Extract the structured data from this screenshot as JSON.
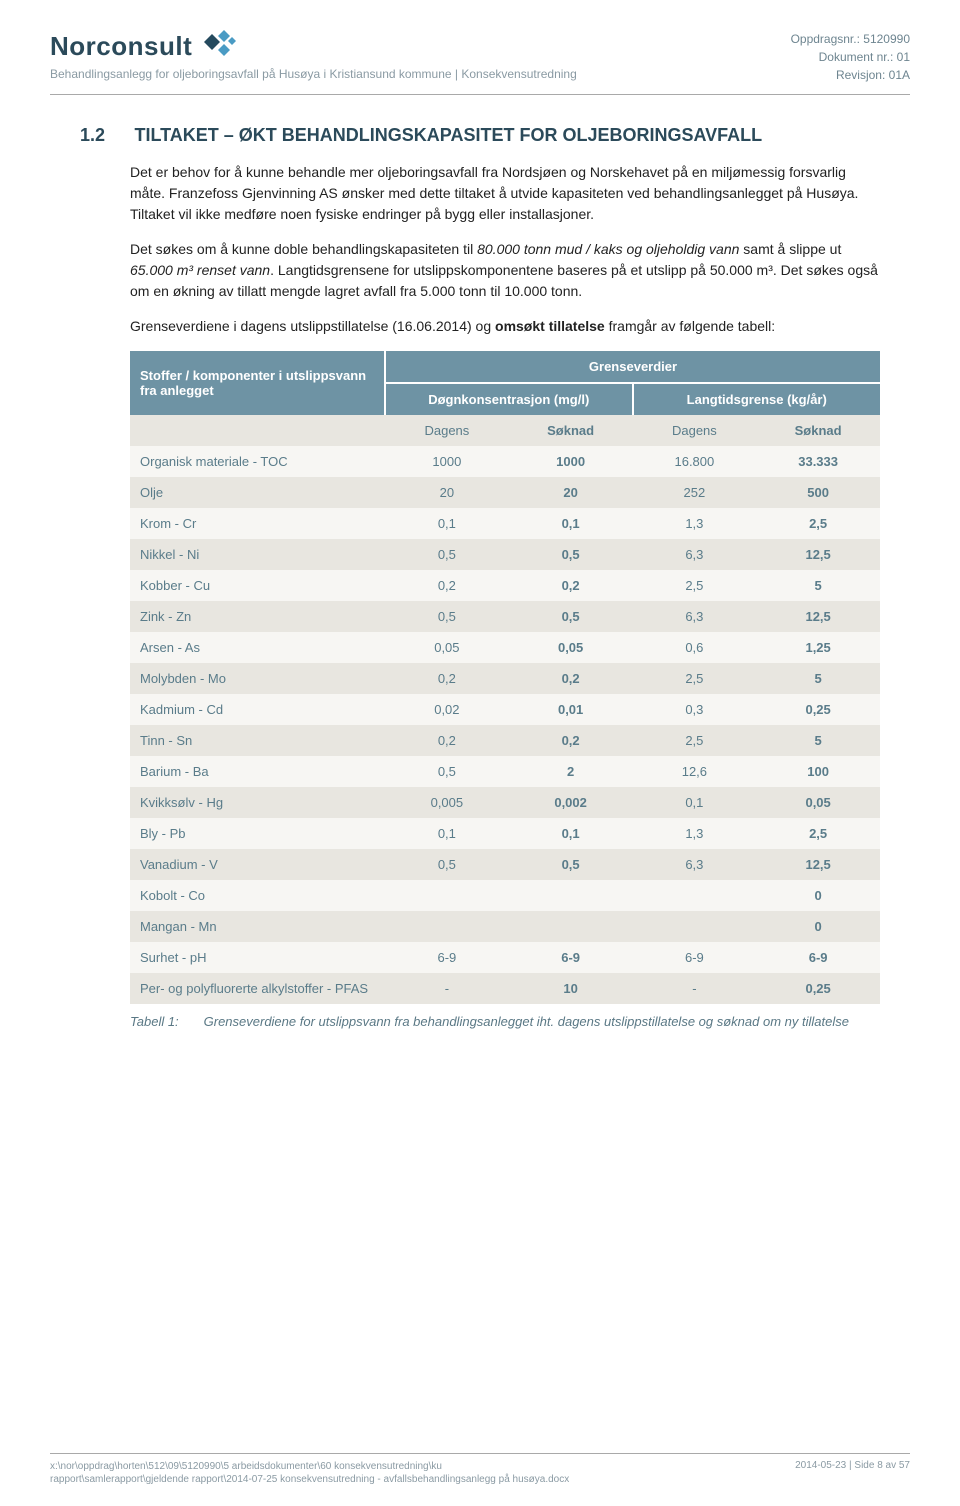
{
  "header": {
    "logo_text": "Norconsult",
    "logo_colors": {
      "dark": "#254a5e",
      "accent": "#4a9bc4"
    },
    "subtitle": "Behandlingsanlegg for oljeboringsavfall på Husøya i Kristiansund kommune | Konsekvensutredning",
    "right": {
      "line1": "Oppdragsnr.: 5120990",
      "line2": "Dokument nr.: 01",
      "line3": "Revisjon: 01A"
    }
  },
  "section": {
    "num": "1.2",
    "title": "TILTAKET – ØKT BEHANDLINGSKAPASITET FOR OLJEBORINGSAVFALL",
    "p1": "Det er behov for å kunne behandle mer oljeboringsavfall fra Nordsjøen og Norskehavet på en miljømessig forsvarlig måte. Franzefoss Gjenvinning AS ønsker med dette tiltaket å utvide kapasiteten ved behandlingsanlegget på Husøya. Tiltaket vil ikke medføre noen fysiske endringer på bygg eller installasjoner.",
    "p2_a": "Det søkes om å kunne doble behandlingskapasiteten til ",
    "p2_i1": "80.000 tonn mud / kaks og oljeholdig vann",
    "p2_b": " samt å slippe ut ",
    "p2_i2": "65.000 m³ renset vann",
    "p2_c": ". Langtidsgrensene for utslippskomponentene baseres på et utslipp på 50.000 m³. Det søkes også om en økning av tillatt mengde lagret avfall fra 5.000 tonn til 10.000 tonn.",
    "p3_a": "Grenseverdiene i dagens utslippstillatelse (16.06.2014) og ",
    "p3_b": "omsøkt tillatelse",
    "p3_c": " framgår av følgende tabell:"
  },
  "table": {
    "head_left": "Stoffer / komponenter i utslippsvann fra anlegget",
    "head_group": "Grenseverdier",
    "head_sub1": "Døgnkonsentrasjon (mg/l)",
    "head_sub2": "Langtidsgrense (kg/år)",
    "col1": "Dagens",
    "col2": "Søknad",
    "col3": "Dagens",
    "col4": "Søknad",
    "rows": [
      {
        "label": "Organisk materiale - TOC",
        "v1": "1000",
        "v2": "1000",
        "v3": "16.800",
        "v4": "33.333"
      },
      {
        "label": "Olje",
        "v1": "20",
        "v2": "20",
        "v3": "252",
        "v4": "500"
      },
      {
        "label": "Krom - Cr",
        "v1": "0,1",
        "v2": "0,1",
        "v3": "1,3",
        "v4": "2,5"
      },
      {
        "label": "Nikkel - Ni",
        "v1": "0,5",
        "v2": "0,5",
        "v3": "6,3",
        "v4": "12,5"
      },
      {
        "label": "Kobber - Cu",
        "v1": "0,2",
        "v2": "0,2",
        "v3": "2,5",
        "v4": "5"
      },
      {
        "label": "Zink - Zn",
        "v1": "0,5",
        "v2": "0,5",
        "v3": "6,3",
        "v4": "12,5"
      },
      {
        "label": "Arsen - As",
        "v1": "0,05",
        "v2": "0,05",
        "v3": "0,6",
        "v4": "1,25"
      },
      {
        "label": "Molybden - Mo",
        "v1": "0,2",
        "v2": "0,2",
        "v3": "2,5",
        "v4": "5"
      },
      {
        "label": "Kadmium - Cd",
        "v1": "0,02",
        "v2": "0,01",
        "v3": "0,3",
        "v4": "0,25"
      },
      {
        "label": "Tinn - Sn",
        "v1": "0,2",
        "v2": "0,2",
        "v3": "2,5",
        "v4": "5"
      },
      {
        "label": "Barium - Ba",
        "v1": "0,5",
        "v2": "2",
        "v3": "12,6",
        "v4": "100"
      },
      {
        "label": "Kvikksølv - Hg",
        "v1": "0,005",
        "v2": "0,002",
        "v3": "0,1",
        "v4": "0,05"
      },
      {
        "label": "Bly - Pb",
        "v1": "0,1",
        "v2": "0,1",
        "v3": "1,3",
        "v4": "2,5"
      },
      {
        "label": "Vanadium - V",
        "v1": "0,5",
        "v2": "0,5",
        "v3": "6,3",
        "v4": "12,5"
      },
      {
        "label": "Kobolt - Co",
        "v1": "",
        "v2": "",
        "v3": "",
        "v4": "0"
      },
      {
        "label": "Mangan - Mn",
        "v1": "",
        "v2": "",
        "v3": "",
        "v4": "0"
      },
      {
        "label": "Surhet - pH",
        "v1": "6-9",
        "v2": "6-9",
        "v3": "6-9",
        "v4": "6-9"
      },
      {
        "label": "Per- og polyfluorerte alkylstoffer - PFAS",
        "v1": "-",
        "v2": "10",
        "v3": "-",
        "v4": "0,25"
      }
    ],
    "caption_label": "Tabell 1:",
    "caption_text": "Grenseverdiene for utslippsvann fra behandlingsanlegget iht. dagens utslippstillatelse og søknad om ny tillatelse"
  },
  "footer": {
    "left1": "x:\\nor\\oppdrag\\horten\\512\\09\\5120990\\5 arbeidsdokumenter\\60 konsekvensutredning\\ku",
    "left2": "rapport\\samlerapport\\gjeldende rapport\\2014-07-25 konsekvensutredning - avfallsbehandlingsanlegg på husøya.docx",
    "right": "2014-05-23 | Side 8 av 57"
  },
  "styling": {
    "header_bg": "#6e93a4",
    "header_text": "#ffffff",
    "row_odd_bg": "#f7f6f3",
    "row_even_bg": "#e8e6e0",
    "cell_text": "#5a7c8a",
    "body_font": "Arial",
    "heading_font": "Trebuchet MS",
    "heading_color": "#2b4a5a"
  }
}
